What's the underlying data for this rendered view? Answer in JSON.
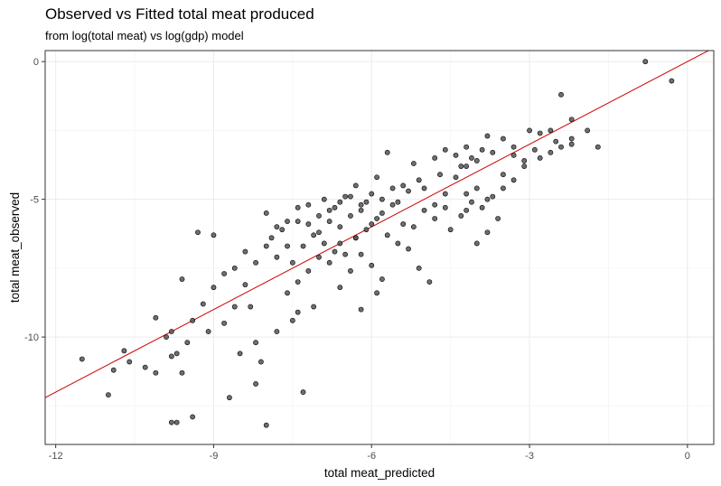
{
  "chart_data": {
    "type": "scatter",
    "title": "Observed vs Fitted total meat produced",
    "subtitle": "from log(total meat) vs log(gdp) model",
    "xlabel": "total meat_predicted",
    "ylabel": "total meat_observed",
    "xlim": [
      -12.2,
      0.5
    ],
    "ylim": [
      -13.9,
      0.4
    ],
    "xticks": [
      -12,
      -9,
      -6,
      -3,
      0
    ],
    "yticks": [
      -10,
      -5,
      0
    ],
    "xtick_labels": [
      "-12",
      "-9",
      "-6",
      "-3",
      "0"
    ],
    "ytick_labels": [
      "-10",
      "-5",
      "0"
    ],
    "grid": true,
    "fit_line": {
      "slope": 1,
      "intercept": 0,
      "color": "#cc0000"
    },
    "point_color": "#555555",
    "series": [
      {
        "name": "observations",
        "points": [
          [
            -0.8,
            0.0
          ],
          [
            -0.3,
            -0.7
          ],
          [
            -2.4,
            -1.2
          ],
          [
            -2.2,
            -2.1
          ],
          [
            -1.9,
            -2.5
          ],
          [
            -1.7,
            -3.1
          ],
          [
            -2.2,
            -2.8
          ],
          [
            -2.2,
            -3.0
          ],
          [
            -2.6,
            -2.5
          ],
          [
            -2.8,
            -2.6
          ],
          [
            -2.9,
            -3.2
          ],
          [
            -2.4,
            -3.1
          ],
          [
            -3.0,
            -2.5
          ],
          [
            -3.3,
            -3.1
          ],
          [
            -3.5,
            -2.8
          ],
          [
            -3.8,
            -2.7
          ],
          [
            -3.9,
            -3.2
          ],
          [
            -4.0,
            -3.6
          ],
          [
            -4.2,
            -3.8
          ],
          [
            -4.4,
            -3.4
          ],
          [
            -4.6,
            -3.2
          ],
          [
            -4.8,
            -3.5
          ],
          [
            -3.7,
            -3.3
          ],
          [
            -3.1,
            -3.8
          ],
          [
            -3.5,
            -4.6
          ],
          [
            -3.8,
            -5.0
          ],
          [
            -4.0,
            -4.6
          ],
          [
            -4.2,
            -4.8
          ],
          [
            -4.4,
            -4.2
          ],
          [
            -4.6,
            -4.8
          ],
          [
            -4.8,
            -5.2
          ],
          [
            -5.0,
            -4.6
          ],
          [
            -5.1,
            -4.3
          ],
          [
            -5.3,
            -4.7
          ],
          [
            -5.5,
            -5.1
          ],
          [
            -5.6,
            -4.6
          ],
          [
            -5.8,
            -5.0
          ],
          [
            -6.0,
            -4.8
          ],
          [
            -6.2,
            -5.2
          ],
          [
            -6.4,
            -4.9
          ],
          [
            -6.6,
            -5.1
          ],
          [
            -6.8,
            -5.4
          ],
          [
            -7.0,
            -5.6
          ],
          [
            -7.2,
            -5.9
          ],
          [
            -7.4,
            -5.3
          ],
          [
            -7.6,
            -5.8
          ],
          [
            -7.8,
            -6.0
          ],
          [
            -8.0,
            -5.5
          ],
          [
            -7.1,
            -6.3
          ],
          [
            -6.9,
            -6.6
          ],
          [
            -6.7,
            -6.9
          ],
          [
            -6.5,
            -7.0
          ],
          [
            -6.3,
            -6.4
          ],
          [
            -6.1,
            -6.1
          ],
          [
            -5.9,
            -5.7
          ],
          [
            -5.7,
            -6.3
          ],
          [
            -5.5,
            -6.6
          ],
          [
            -5.3,
            -6.8
          ],
          [
            -5.1,
            -7.5
          ],
          [
            -4.9,
            -8.0
          ],
          [
            -4.5,
            -6.1
          ],
          [
            -4.2,
            -5.4
          ],
          [
            -4.0,
            -6.6
          ],
          [
            -3.8,
            -6.2
          ],
          [
            -3.6,
            -5.7
          ],
          [
            -6.2,
            -7.0
          ],
          [
            -6.0,
            -7.4
          ],
          [
            -5.8,
            -7.9
          ],
          [
            -6.4,
            -7.6
          ],
          [
            -6.6,
            -8.2
          ],
          [
            -6.8,
            -7.3
          ],
          [
            -7.0,
            -7.1
          ],
          [
            -7.2,
            -7.6
          ],
          [
            -7.4,
            -8.0
          ],
          [
            -7.6,
            -8.4
          ],
          [
            -7.8,
            -7.1
          ],
          [
            -8.0,
            -6.7
          ],
          [
            -8.2,
            -7.3
          ],
          [
            -8.4,
            -8.1
          ],
          [
            -8.6,
            -7.5
          ],
          [
            -8.8,
            -7.7
          ],
          [
            -9.0,
            -8.2
          ],
          [
            -9.2,
            -8.8
          ],
          [
            -9.4,
            -9.4
          ],
          [
            -9.6,
            -7.9
          ],
          [
            -9.0,
            -6.3
          ],
          [
            -9.3,
            -6.2
          ],
          [
            -8.6,
            -8.9
          ],
          [
            -8.3,
            -8.9
          ],
          [
            -7.5,
            -9.4
          ],
          [
            -7.1,
            -8.9
          ],
          [
            -6.2,
            -9.0
          ],
          [
            -5.9,
            -8.4
          ],
          [
            -7.8,
            -9.8
          ],
          [
            -8.2,
            -10.2
          ],
          [
            -8.5,
            -10.6
          ],
          [
            -8.8,
            -9.5
          ],
          [
            -9.1,
            -9.8
          ],
          [
            -9.5,
            -10.2
          ],
          [
            -9.7,
            -10.6
          ],
          [
            -9.9,
            -10.0
          ],
          [
            -10.1,
            -9.3
          ],
          [
            -10.3,
            -11.1
          ],
          [
            -10.6,
            -10.9
          ],
          [
            -10.9,
            -11.2
          ],
          [
            -11.0,
            -12.1
          ],
          [
            -11.5,
            -10.8
          ],
          [
            -10.1,
            -11.3
          ],
          [
            -9.6,
            -11.3
          ],
          [
            -9.4,
            -12.9
          ],
          [
            -9.7,
            -13.1
          ],
          [
            -9.8,
            -13.1
          ],
          [
            -8.0,
            -13.2
          ],
          [
            -8.2,
            -11.7
          ],
          [
            -8.7,
            -12.2
          ],
          [
            -7.3,
            -12.0
          ],
          [
            -8.1,
            -10.9
          ],
          [
            -9.8,
            -9.8
          ],
          [
            -9.8,
            -10.7
          ],
          [
            -10.7,
            -10.5
          ],
          [
            -7.4,
            -9.1
          ],
          [
            -7.5,
            -7.3
          ],
          [
            -7.3,
            -6.7
          ],
          [
            -7.0,
            -6.2
          ],
          [
            -6.8,
            -5.8
          ],
          [
            -6.6,
            -6.0
          ],
          [
            -6.4,
            -5.6
          ],
          [
            -6.2,
            -5.4
          ],
          [
            -6.0,
            -5.9
          ],
          [
            -5.8,
            -5.5
          ],
          [
            -5.6,
            -5.2
          ],
          [
            -5.4,
            -5.9
          ],
          [
            -5.2,
            -6.0
          ],
          [
            -5.0,
            -5.4
          ],
          [
            -4.8,
            -5.7
          ],
          [
            -4.6,
            -5.3
          ],
          [
            -4.3,
            -5.6
          ],
          [
            -4.1,
            -5.1
          ],
          [
            -3.9,
            -5.3
          ],
          [
            -3.7,
            -4.9
          ],
          [
            -3.5,
            -4.1
          ],
          [
            -3.3,
            -4.3
          ],
          [
            -3.1,
            -3.6
          ],
          [
            -2.8,
            -3.5
          ],
          [
            -2.6,
            -3.3
          ],
          [
            -6.3,
            -4.5
          ],
          [
            -6.5,
            -4.9
          ],
          [
            -6.7,
            -5.3
          ],
          [
            -6.9,
            -5.0
          ],
          [
            -7.2,
            -5.2
          ],
          [
            -7.4,
            -5.8
          ],
          [
            -7.7,
            -6.1
          ],
          [
            -5.7,
            -3.3
          ],
          [
            -5.2,
            -3.7
          ],
          [
            -4.7,
            -4.1
          ],
          [
            -4.3,
            -3.8
          ],
          [
            -4.2,
            -3.1
          ],
          [
            -4.1,
            -3.5
          ],
          [
            -3.3,
            -3.4
          ],
          [
            -2.5,
            -2.9
          ],
          [
            -5.4,
            -4.5
          ],
          [
            -5.9,
            -4.2
          ],
          [
            -6.1,
            -5.1
          ],
          [
            -6.3,
            -6.4
          ],
          [
            -6.6,
            -6.6
          ],
          [
            -7.6,
            -6.7
          ],
          [
            -7.9,
            -6.4
          ],
          [
            -8.4,
            -6.9
          ]
        ]
      }
    ]
  }
}
